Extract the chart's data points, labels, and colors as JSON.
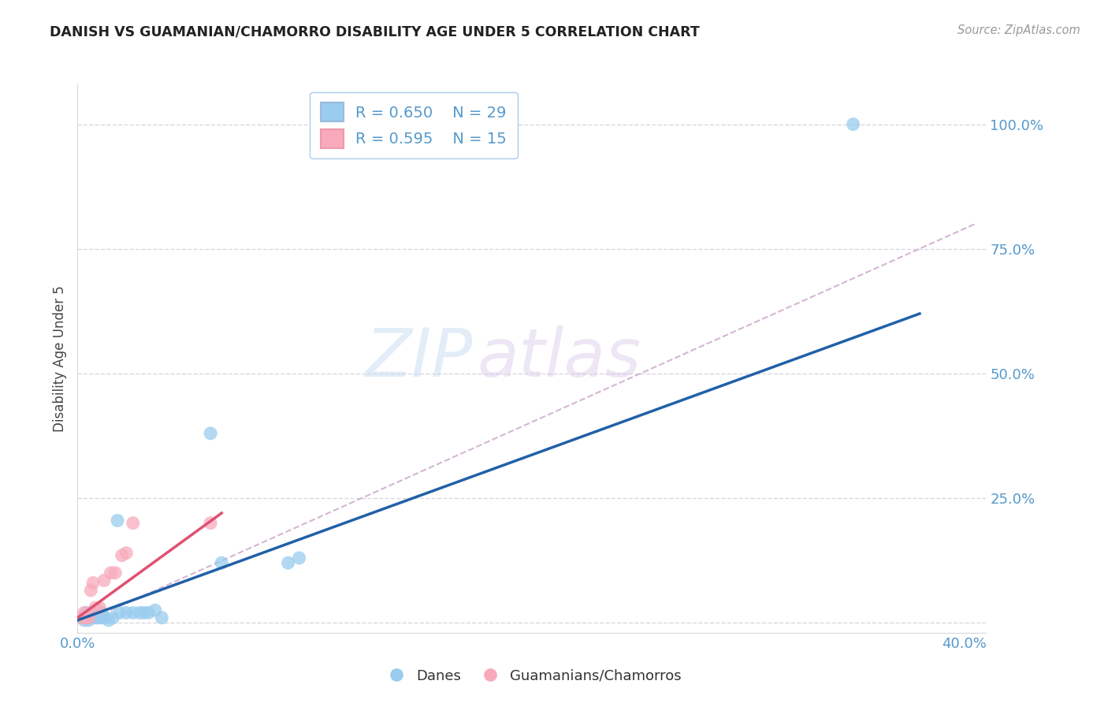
{
  "title": "DANISH VS GUAMANIAN/CHAMORRO DISABILITY AGE UNDER 5 CORRELATION CHART",
  "source": "Source: ZipAtlas.com",
  "label_blue": "Danes",
  "label_pink": "Guamanians/Chamorros",
  "ylabel": "Disability Age Under 5",
  "legend_blue_r": "R = 0.650",
  "legend_blue_n": "N = 29",
  "legend_pink_r": "R = 0.595",
  "legend_pink_n": "N = 15",
  "xlim": [
    0.0,
    0.41
  ],
  "ylim": [
    -0.02,
    1.08
  ],
  "xticks": [
    0.0,
    0.1,
    0.2,
    0.3,
    0.4
  ],
  "xtick_labels": [
    "0.0%",
    "",
    "",
    "",
    "40.0%"
  ],
  "yticks": [
    0.0,
    0.25,
    0.5,
    0.75,
    1.0
  ],
  "ytick_labels": [
    "",
    "25.0%",
    "50.0%",
    "75.0%",
    "100.0%"
  ],
  "blue_scatter_color": "#99ccee",
  "blue_line_color": "#2060a8",
  "pink_scatter_color": "#f8aabb",
  "pink_line_color": "#e05070",
  "dashed_line_color": "#ccaacc",
  "grid_color": "#d8d8e0",
  "title_color": "#222222",
  "axis_color": "#5599cc",
  "background_color": "#ffffff",
  "blue_scatter_x": [
    0.002,
    0.003,
    0.004,
    0.004,
    0.005,
    0.005,
    0.006,
    0.007,
    0.008,
    0.009,
    0.01,
    0.011,
    0.012,
    0.014,
    0.016,
    0.018,
    0.019,
    0.022,
    0.025,
    0.028,
    0.03,
    0.032,
    0.035,
    0.038,
    0.06,
    0.065,
    0.095,
    0.1,
    0.35
  ],
  "blue_scatter_y": [
    0.01,
    0.005,
    0.02,
    0.01,
    0.01,
    0.005,
    0.02,
    0.01,
    0.01,
    0.01,
    0.01,
    0.02,
    0.01,
    0.005,
    0.01,
    0.205,
    0.02,
    0.02,
    0.02,
    0.02,
    0.02,
    0.02,
    0.025,
    0.01,
    0.38,
    0.12,
    0.12,
    0.13,
    1.0
  ],
  "pink_scatter_x": [
    0.002,
    0.003,
    0.004,
    0.005,
    0.006,
    0.007,
    0.008,
    0.01,
    0.012,
    0.015,
    0.017,
    0.02,
    0.022,
    0.025,
    0.06
  ],
  "pink_scatter_y": [
    0.01,
    0.02,
    0.01,
    0.01,
    0.065,
    0.08,
    0.03,
    0.03,
    0.085,
    0.1,
    0.1,
    0.135,
    0.14,
    0.2,
    0.2
  ],
  "blue_line_x": [
    0.0,
    0.38
  ],
  "blue_line_y": [
    0.005,
    0.62
  ],
  "pink_line_x": [
    0.0,
    0.065
  ],
  "pink_line_y": [
    0.01,
    0.22
  ],
  "dashed_line_x": [
    0.015,
    0.405
  ],
  "dashed_line_y": [
    0.025,
    0.8
  ],
  "watermark_zip": "ZIP",
  "watermark_atlas": "atlas"
}
